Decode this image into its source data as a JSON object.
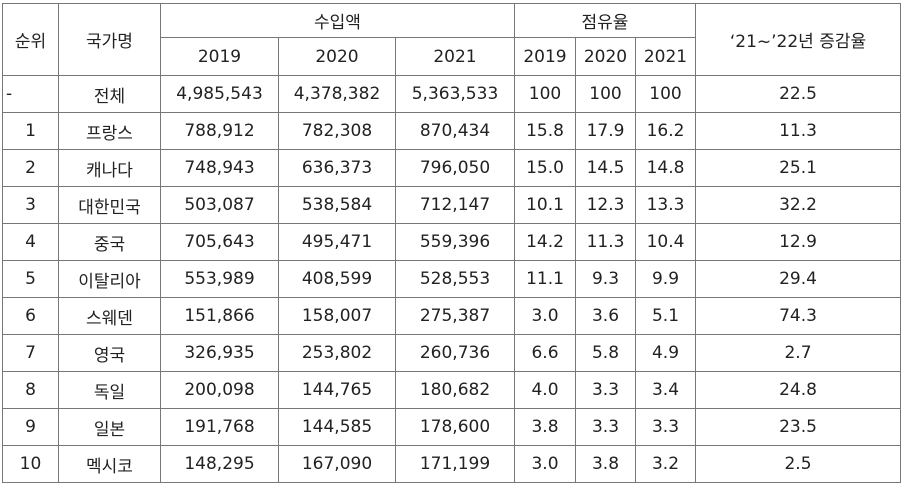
{
  "headers": {
    "rank": "순위",
    "country": "국가명",
    "import_amount": "수입액",
    "share": "점유율",
    "change": "‘21~’22년 증감율",
    "years": [
      "2019",
      "2020",
      "2021"
    ]
  },
  "rows": [
    {
      "rank": "-",
      "country": "전체",
      "imp": [
        "4,985,543",
        "4,378,382",
        "5,363,533"
      ],
      "share": [
        "100",
        "100",
        "100"
      ],
      "change": "22.5"
    },
    {
      "rank": "1",
      "country": "프랑스",
      "imp": [
        "788,912",
        "782,308",
        "870,434"
      ],
      "share": [
        "15.8",
        "17.9",
        "16.2"
      ],
      "change": "11.3"
    },
    {
      "rank": "2",
      "country": "캐나다",
      "imp": [
        "748,943",
        "636,373",
        "796,050"
      ],
      "share": [
        "15.0",
        "14.5",
        "14.8"
      ],
      "change": "25.1"
    },
    {
      "rank": "3",
      "country": "대한민국",
      "imp": [
        "503,087",
        "538,584",
        "712,147"
      ],
      "share": [
        "10.1",
        "12.3",
        "13.3"
      ],
      "change": "32.2"
    },
    {
      "rank": "4",
      "country": "중국",
      "imp": [
        "705,643",
        "495,471",
        "559,396"
      ],
      "share": [
        "14.2",
        "11.3",
        "10.4"
      ],
      "change": "12.9"
    },
    {
      "rank": "5",
      "country": "이탈리아",
      "imp": [
        "553,989",
        "408,599",
        "528,553"
      ],
      "share": [
        "11.1",
        "9.3",
        "9.9"
      ],
      "change": "29.4"
    },
    {
      "rank": "6",
      "country": "스웨덴",
      "imp": [
        "151,866",
        "158,007",
        "275,387"
      ],
      "share": [
        "3.0",
        "3.6",
        "5.1"
      ],
      "change": "74.3"
    },
    {
      "rank": "7",
      "country": "영국",
      "imp": [
        "326,935",
        "253,802",
        "260,736"
      ],
      "share": [
        "6.6",
        "5.8",
        "4.9"
      ],
      "change": "2.7"
    },
    {
      "rank": "8",
      "country": "독일",
      "imp": [
        "200,098",
        "144,765",
        "180,682"
      ],
      "share": [
        "4.0",
        "3.3",
        "3.4"
      ],
      "change": "24.8"
    },
    {
      "rank": "9",
      "country": "일본",
      "imp": [
        "191,768",
        "144,585",
        "178,600"
      ],
      "share": [
        "3.8",
        "3.3",
        "3.3"
      ],
      "change": "23.5"
    },
    {
      "rank": "10",
      "country": "멕시코",
      "imp": [
        "148,295",
        "167,090",
        "171,199"
      ],
      "share": [
        "3.0",
        "3.8",
        "3.2"
      ],
      "change": "2.5"
    }
  ]
}
